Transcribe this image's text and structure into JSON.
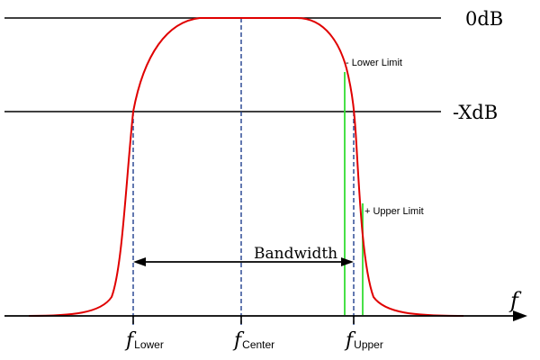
{
  "labels": {
    "zero_db": "0dB",
    "minus_x_db": "-XdB",
    "lower_limit": "- Lower Limit",
    "upper_limit": "+ Upper Limit",
    "bandwidth": "Bandwidth",
    "axis_symbol": "f",
    "f_symbol": "f",
    "f_lower_sub": "Lower",
    "f_center_sub": "Center",
    "f_upper_sub": "Upper"
  },
  "colors": {
    "curve": "#e00000",
    "reference_line": "#000000",
    "marker_dashed": "#1f3f8f",
    "limit_line": "#33dd33",
    "arrow": "#000000"
  }
}
